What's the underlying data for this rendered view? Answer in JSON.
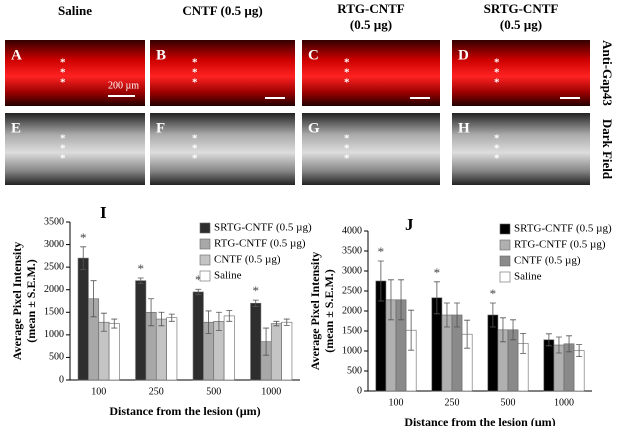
{
  "panels": {
    "columns": [
      [
        "Saline"
      ],
      [
        "CNTF (0.5 µg)"
      ],
      [
        "RTG-CNTF",
        "(0.5 µg)"
      ],
      [
        "SRTG-CNTF",
        "(0.5 µg)"
      ]
    ],
    "rows": [
      "Anti-Gap43",
      "Dark Field"
    ],
    "letters": [
      "A",
      "B",
      "C",
      "D",
      "E",
      "F",
      "G",
      "H"
    ],
    "lesion_mark": "*",
    "scale_bar": "200 µm"
  },
  "chart_data": [
    {
      "type": "bar",
      "title": "I",
      "ylabel": [
        "Average Pixel Intensity",
        "(mean ± S.E.M.)"
      ],
      "xlabel": "Distance from the lesion (µm)",
      "categories": [
        "100",
        "250",
        "500",
        "1000"
      ],
      "series": [
        {
          "name": "SRTG-CNTF (0.5 µg)",
          "color": "#2e2e2e",
          "values": [
            2700,
            2200,
            1950,
            1700
          ],
          "errors": [
            250,
            60,
            60,
            70
          ]
        },
        {
          "name": "RTG-CNTF (0.5 µg)",
          "color": "#a8a8a8",
          "values": [
            1800,
            1500,
            1280,
            850
          ],
          "errors": [
            400,
            300,
            250,
            300
          ]
        },
        {
          "name": "CNTF (0.5 µg)",
          "color": "#c4c4c4",
          "values": [
            1280,
            1350,
            1300,
            1250
          ],
          "errors": [
            200,
            150,
            200,
            50
          ]
        },
        {
          "name": "Saline",
          "color": "#ffffff",
          "values": [
            1250,
            1380,
            1420,
            1280
          ],
          "errors": [
            100,
            80,
            120,
            70
          ]
        }
      ],
      "markers": [
        "*",
        "*",
        "*",
        "*"
      ],
      "ylim": [
        0,
        3500
      ],
      "yticks": [
        0,
        500,
        1000,
        1500,
        2000,
        2500,
        3000,
        3500
      ]
    },
    {
      "type": "bar",
      "title": "J",
      "ylabel": [
        "Average Pixel Intensity",
        "(mean ± S.E.M.)"
      ],
      "xlabel": "Distance from the lesion (µm)",
      "categories": [
        "100",
        "250",
        "500",
        "1000"
      ],
      "series": [
        {
          "name": "SRTG-CNTF (0.5 µg)",
          "color": "#000000",
          "values": [
            2750,
            2330,
            1900,
            1280
          ],
          "errors": [
            500,
            400,
            300,
            150
          ]
        },
        {
          "name": "RTG-CNTF (0.5 µg)",
          "color": "#b0b0b0",
          "values": [
            2280,
            1900,
            1530,
            1150
          ],
          "errors": [
            500,
            300,
            300,
            200
          ]
        },
        {
          "name": "CNTF (0.5 µg)",
          "color": "#8a8a8a",
          "values": [
            2280,
            1900,
            1530,
            1180
          ],
          "errors": [
            500,
            300,
            250,
            200
          ]
        },
        {
          "name": "Saline",
          "color": "#ffffff",
          "values": [
            1520,
            1420,
            1190,
            1010
          ],
          "errors": [
            500,
            350,
            250,
            150
          ]
        }
      ],
      "markers": [
        "*",
        "*",
        "*",
        null
      ],
      "ylim": [
        0,
        4000
      ],
      "yticks": [
        0,
        500,
        1000,
        1500,
        2000,
        2500,
        3000,
        3500,
        4000
      ]
    }
  ]
}
